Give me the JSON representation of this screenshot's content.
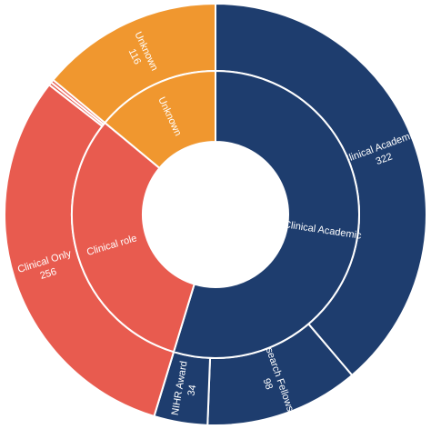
{
  "chart_data": {
    "type": "sunburst",
    "groups": [
      {
        "name": "Clinical Academic",
        "color": "#1e3d6e",
        "children": [
          {
            "name": "Clinical Academic",
            "value": 322
          },
          {
            "name": "Research Fellowship",
            "value": 98
          },
          {
            "name": "NIHR Award",
            "value": 34
          }
        ]
      },
      {
        "name": "Clinical role",
        "color": "#e85b4f",
        "children": [
          {
            "name": "Clinical Only",
            "value": 256
          },
          {
            "name": null,
            "value": 2
          },
          {
            "name": null,
            "value": 2
          }
        ]
      },
      {
        "name": "Unknown",
        "color": "#f0972f",
        "children": [
          {
            "name": "Unknown",
            "value": 116
          }
        ]
      }
    ]
  }
}
